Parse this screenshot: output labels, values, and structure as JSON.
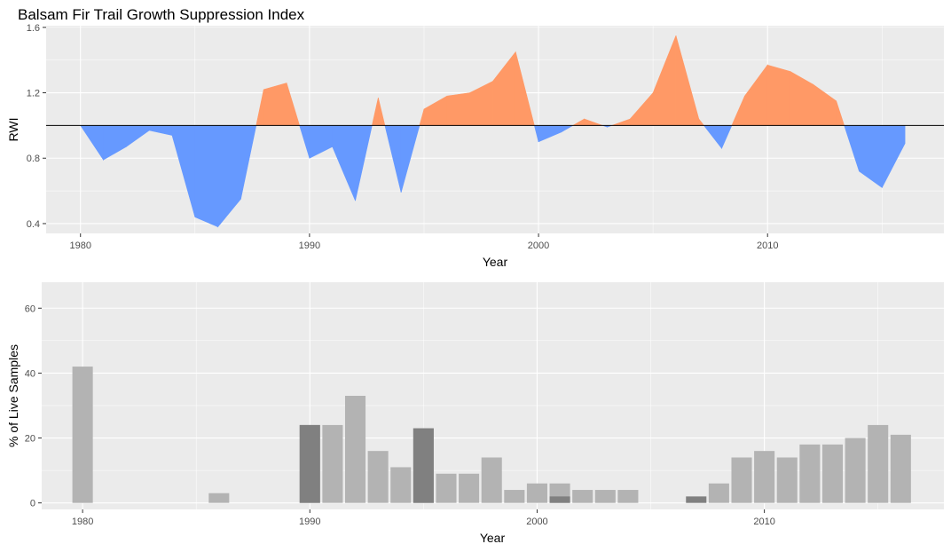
{
  "title": "Balsam Fir Trail Growth Suppression Index",
  "chart_data": [
    {
      "type": "area",
      "title": "Balsam Fir Trail Growth Suppression Index",
      "xlabel": "Year",
      "ylabel": "RWI",
      "xlim": [
        1978.5,
        2017.7
      ],
      "ylim": [
        0.34,
        1.61
      ],
      "xticks": [
        1980,
        1990,
        2000,
        2010
      ],
      "yticks": [
        0.4,
        0.8,
        1.2,
        1.6
      ],
      "ytick_labels": [
        "0.4",
        "0.8",
        "1.2",
        "1.6"
      ],
      "reference_line": 1.0,
      "grid": true,
      "fill_above_color": "#ff9966",
      "fill_below_color": "#6699ff",
      "x": [
        1980,
        1981,
        1982,
        1983,
        1984,
        1985,
        1986,
        1987,
        1988,
        1989,
        1990,
        1991,
        1992,
        1993,
        1994,
        1995,
        1996,
        1997,
        1998,
        1999,
        2000,
        2001,
        2002,
        2003,
        2004,
        2005,
        2006,
        2007,
        2008,
        2009,
        2010,
        2011,
        2012,
        2013,
        2014,
        2015,
        2016
      ],
      "y": [
        1.0,
        0.79,
        0.87,
        0.97,
        0.94,
        0.44,
        0.38,
        0.55,
        1.22,
        1.26,
        0.8,
        0.87,
        0.54,
        1.17,
        0.59,
        1.1,
        1.18,
        1.2,
        1.27,
        1.45,
        0.9,
        0.96,
        1.04,
        0.99,
        1.04,
        1.2,
        1.55,
        1.04,
        0.86,
        1.18,
        1.37,
        1.33,
        1.25,
        1.15,
        0.72,
        0.62,
        0.89
      ]
    },
    {
      "type": "bar",
      "xlabel": "Year",
      "ylabel": "% of Live Samples",
      "xlim": [
        1978.2,
        2017.9
      ],
      "ylim": [
        -2,
        68
      ],
      "xticks": [
        1980,
        1990,
        2000,
        2010
      ],
      "yticks": [
        0,
        20,
        40,
        60
      ],
      "grid": true,
      "bar_colors": {
        "light": "#b3b3b3",
        "dark": "#808080"
      },
      "series": [
        {
          "x": [
            1980,
            1986,
            1990,
            1991,
            1992,
            1993,
            1994,
            1995,
            1996,
            1997,
            1998,
            1999,
            2000,
            2001,
            2002,
            2003,
            2004,
            2008,
            2009,
            2010,
            2011,
            2012,
            2013,
            2014,
            2015,
            2016
          ],
          "values": [
            42,
            3,
            24,
            24,
            33,
            16,
            11,
            23,
            9,
            9,
            14,
            4,
            6,
            6,
            4,
            4,
            4,
            6,
            14,
            16,
            14,
            18,
            18,
            20,
            24,
            21
          ]
        },
        {
          "x": [
            1990,
            1995,
            2001,
            2007
          ],
          "values": [
            24,
            23,
            2,
            2
          ]
        }
      ]
    }
  ]
}
